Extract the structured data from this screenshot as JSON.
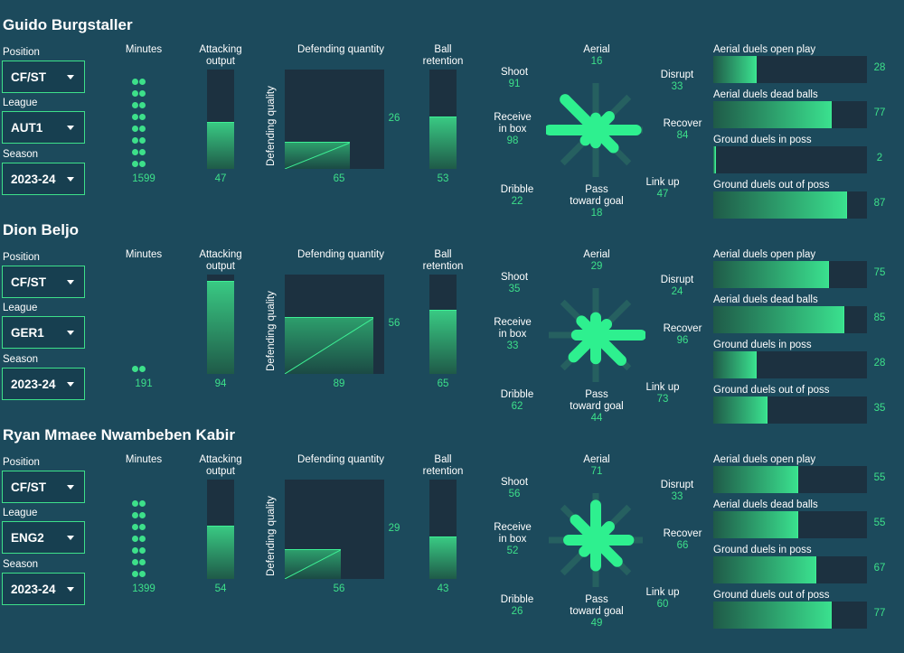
{
  "colors": {
    "background": "#1c4a5c",
    "accent": "#3de08a",
    "track": "#1c3140",
    "text": "#ffffff"
  },
  "labels": {
    "position": "Position",
    "league": "League",
    "season": "Season",
    "minutes": "Minutes",
    "attacking_1": "Attacking",
    "attacking_2": "output",
    "def_quantity": "Defending quantity",
    "def_quality": "Defending quality",
    "ball_1": "Ball",
    "ball_2": "retention",
    "aerial": "Aerial",
    "shoot": "Shoot",
    "disrupt": "Disrupt",
    "receive_1": "Receive",
    "receive_2": "in box",
    "recover": "Recover",
    "dribble": "Dribble",
    "pass_1": "Pass",
    "pass_2": "toward goal",
    "linkup": "Link up",
    "duel_aerial_open": "Aerial duels open play",
    "duel_aerial_dead": "Aerial duels dead balls",
    "duel_ground_in": "Ground duels in poss",
    "duel_ground_out": "Ground duels out of poss"
  },
  "players": [
    {
      "name": "Guido Burgstaller",
      "position": "CF/ST",
      "league": "AUT1",
      "season": "2023-24",
      "minutes": "1599",
      "minutes_dots": 16,
      "attacking": "47",
      "ball_retention": "53",
      "def_quantity": "65",
      "def_quality": "26",
      "radar": {
        "aerial": "16",
        "shoot": "91",
        "disrupt": "33",
        "receive": "98",
        "recover": "84",
        "dribble": "22",
        "pass": "18",
        "linkup": "47"
      },
      "duels": {
        "aerial_open": "28",
        "aerial_dead": "77",
        "ground_in": "2",
        "ground_out": "87"
      }
    },
    {
      "name": "Dion Beljo",
      "position": "CF/ST",
      "league": "GER1",
      "season": "2023-24",
      "minutes": "191",
      "minutes_dots": 2,
      "attacking": "94",
      "ball_retention": "65",
      "def_quantity": "89",
      "def_quality": "56",
      "radar": {
        "aerial": "29",
        "shoot": "35",
        "disrupt": "24",
        "receive": "33",
        "recover": "96",
        "dribble": "62",
        "pass": "44",
        "linkup": "73"
      },
      "duels": {
        "aerial_open": "75",
        "aerial_dead": "85",
        "ground_in": "28",
        "ground_out": "35"
      }
    },
    {
      "name": "Ryan Mmaee Nwambeben Kabir",
      "position": "CF/ST",
      "league": "ENG2",
      "season": "2023-24",
      "minutes": "1399",
      "minutes_dots": 14,
      "attacking": "54",
      "ball_retention": "43",
      "def_quantity": "56",
      "def_quality": "29",
      "radar": {
        "aerial": "71",
        "shoot": "56",
        "disrupt": "33",
        "receive": "52",
        "recover": "66",
        "dribble": "26",
        "pass": "49",
        "linkup": "60"
      },
      "duels": {
        "aerial_open": "55",
        "aerial_dead": "55",
        "ground_in": "67",
        "ground_out": "77"
      }
    }
  ]
}
